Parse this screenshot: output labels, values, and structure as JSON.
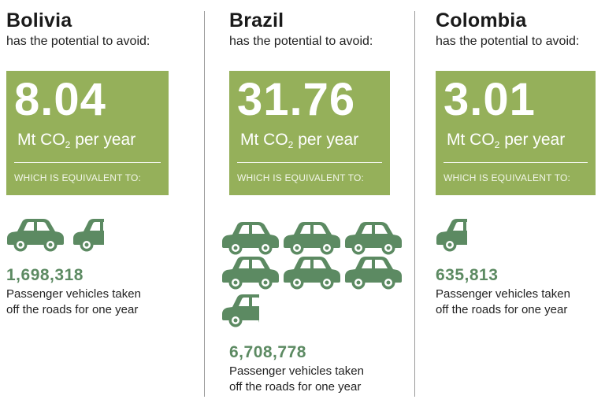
{
  "subtitle": "has the potential to avoid:",
  "unit_prefix": "Mt CO",
  "unit_sub": "2",
  "unit_suffix": " per year",
  "equivalent_label": "WHICH IS EQUIVALENT TO:",
  "vehicles_line1": "Passenger vehicles taken",
  "vehicles_line2": "off the roads for one year",
  "colors": {
    "box": "#95b05a",
    "car": "#5c8a62",
    "divider": "#9a9a9a"
  },
  "icon": "car-icon",
  "countries": [
    {
      "name": "Bolivia",
      "mt_co2": "8.04",
      "vehicles": "1,698,318"
    },
    {
      "name": "Brazil",
      "mt_co2": "31.76",
      "vehicles": "6,708,778"
    },
    {
      "name": "Colombia",
      "mt_co2": "3.01",
      "vehicles": "635,813"
    }
  ]
}
